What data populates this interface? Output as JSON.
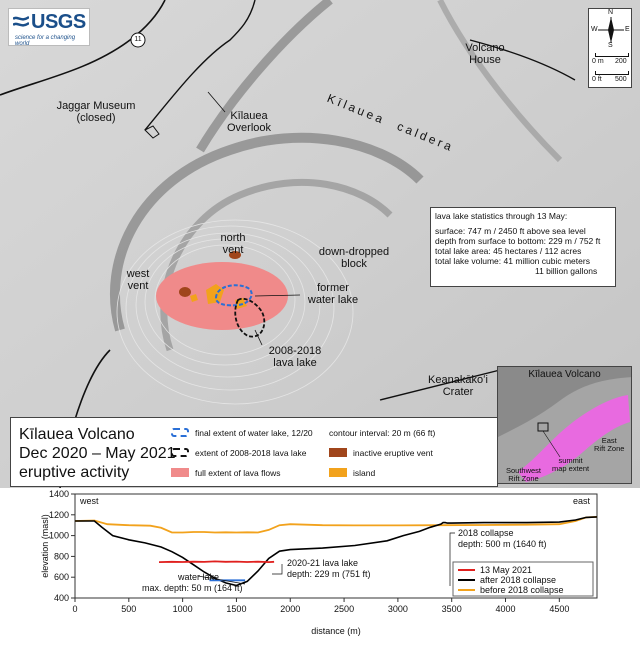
{
  "map": {
    "logo": {
      "name": "USGS",
      "tagline": "science for a changing world"
    },
    "route_label": "11",
    "labels": {
      "jaggar": "Jaggar Museum",
      "jaggar2": "(closed)",
      "overlook": "Kīlauea",
      "overlook2": "Overlook",
      "volcano_house": "Volcano",
      "volcano_house2": "House",
      "caldera1": "Kīlauea",
      "caldera2": "caldera",
      "north_vent": "north",
      "north_vent2": "vent",
      "west_vent": "west",
      "west_vent2": "vent",
      "former1": "former",
      "former2": "water lake",
      "lavalake1": "2008-2018",
      "lavalake2": "lava lake",
      "downdrop1": "down-dropped",
      "downdrop2": "block",
      "crater1": "Keanakākoʻi",
      "crater2": "Crater"
    },
    "north_arrow": {
      "n": "N",
      "s": "S",
      "e": "E",
      "w": "W"
    },
    "scale": {
      "m0": "0 m",
      "m1": "200",
      "f0": "0 ft",
      "f1": "500"
    },
    "stats": {
      "title": "lava lake statistics through 13 May:",
      "l1": "surface: 747 m / 2450 ft above sea level",
      "l2": "depth from surface to bottom: 229 m / 752 ft",
      "l3": "total lake area: 45 hectares / 112 acres",
      "l4": "total lake volume: 41 million cubic meters",
      "l5": "11 billion gallons"
    },
    "legend": {
      "title1": "Kīlauea Volcano",
      "title2": "Dec 2020 – May 2021",
      "title3": "eruptive activity",
      "water_lake": "final extent of water lake, 12/20",
      "old_lake": "extent of 2008-2018 lava lake",
      "lava_flows": "full extent of lava flows",
      "contour": "contour interval: 20 m (66 ft)",
      "vent": "inactive eruptive vent",
      "island": "island"
    },
    "inset": {
      "title": "Kīlauea Volcano",
      "east1": "East",
      "east2": "Rift Zone",
      "sw1": "Southwest",
      "sw2": "Rift Zone",
      "sm1": "summit",
      "sm2": "map extent"
    },
    "colors": {
      "lava": "#f08a8a",
      "island": "#f2a21c",
      "vent": "#a0451b",
      "water": "#2a6fd6"
    }
  },
  "chart_data": {
    "type": "line",
    "xlabel": "distance (m)",
    "ylabel": "elevation (masl)",
    "xlim": [
      0,
      4850
    ],
    "ylim": [
      400,
      1400
    ],
    "xticks": [
      0,
      500,
      1000,
      1500,
      2000,
      2500,
      3000,
      3500,
      4000,
      4500
    ],
    "yticks": [
      400,
      600,
      800,
      1000,
      1200,
      1400
    ],
    "series": [
      {
        "name": "13 May 2021",
        "color": "#e0201e",
        "x": [
          780,
          900,
          1000,
          1100,
          1200,
          1300,
          1400,
          1500,
          1600,
          1700,
          1800,
          1850
        ],
        "y": [
          745,
          748,
          746,
          749,
          747,
          752,
          748,
          750,
          746,
          749,
          745,
          748
        ]
      },
      {
        "name": "after 2018 collapse",
        "color": "#000000",
        "x": [
          0,
          180,
          250,
          350,
          500,
          650,
          800,
          900,
          1000,
          1100,
          1200,
          1300,
          1400,
          1500,
          1600,
          1700,
          1800,
          1900,
          2000,
          2300,
          2600,
          2900,
          3050,
          3200,
          3300,
          3400,
          3420,
          3440,
          3460,
          3500,
          3800,
          4200,
          4500,
          4650,
          4750,
          4850
        ],
        "y": [
          1140,
          1140,
          1080,
          1000,
          960,
          930,
          890,
          845,
          790,
          720,
          650,
          590,
          545,
          520,
          560,
          660,
          780,
          850,
          865,
          880,
          905,
          950,
          1000,
          1040,
          1080,
          1110,
          1125,
          1125,
          1120,
          1120,
          1125,
          1125,
          1130,
          1150,
          1175,
          1180
        ]
      },
      {
        "name": "before 2018 collapse",
        "color": "#f2a21c",
        "x": [
          0,
          180,
          300,
          500,
          700,
          800,
          900,
          1000,
          1100,
          1200,
          1300,
          1400,
          1500,
          1600,
          1700,
          1800,
          1900,
          2000,
          2300,
          2600,
          3000,
          3400,
          3800,
          4200,
          4500,
          4650,
          4750,
          4850
        ],
        "y": [
          1140,
          1145,
          1110,
          1100,
          1095,
          1075,
          1030,
          1030,
          1035,
          1035,
          1030,
          1032,
          1030,
          1032,
          1030,
          1055,
          1100,
          1110,
          1100,
          1098,
          1098,
          1100,
          1102,
          1105,
          1110,
          1140,
          1175,
          1180
        ]
      },
      {
        "name": "water lake",
        "color": "#2a6fd6",
        "x": [
          1250,
          1340,
          1430,
          1520,
          1580
        ],
        "y": [
          570,
          570,
          570,
          570,
          570
        ]
      }
    ],
    "annotations": {
      "west": "west",
      "east": "east",
      "collapse1": "2018 collapse",
      "collapse2": "depth: 500 m (1640 ft)",
      "lake1": "2020-21 lava lake",
      "lake2": "depth: 229 m (751 ft)",
      "water1": "water lake",
      "water2": "max. depth: 50 m (164 ft)"
    },
    "grid": false,
    "legend_position": "bottom-right"
  }
}
